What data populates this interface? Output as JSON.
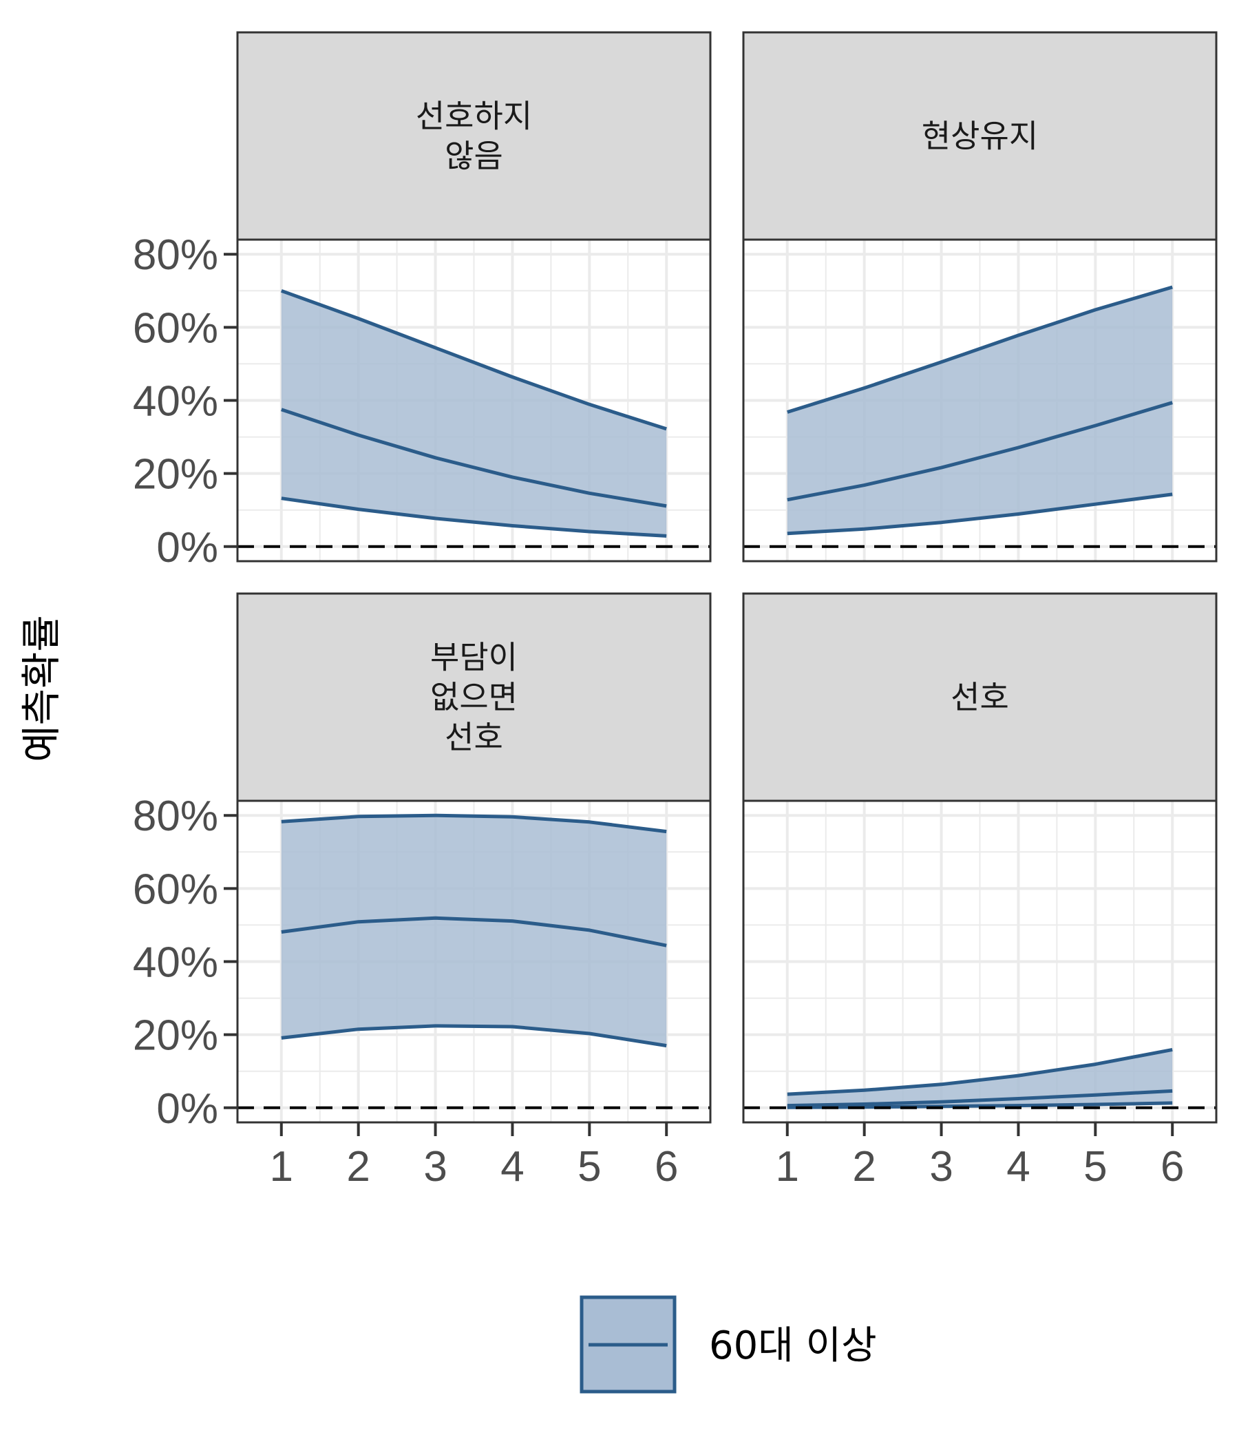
{
  "chart_data": {
    "type": "area",
    "ylabel": "예측확률",
    "xlabel": "",
    "x": [
      1,
      2,
      3,
      4,
      5,
      6
    ],
    "x_tick_labels": [
      "1",
      "2",
      "3",
      "4",
      "5",
      "6"
    ],
    "ylim": [
      -0.04,
      0.84
    ],
    "xlim": [
      0.43,
      6.57
    ],
    "y_ticks": [
      0,
      0.2,
      0.4,
      0.6,
      0.8
    ],
    "y_tick_labels": [
      "0%",
      "20%",
      "40%",
      "60%",
      "80%"
    ],
    "reference_line": {
      "y": 0,
      "style": "dashed",
      "color": "#000000"
    },
    "grid": true,
    "legend": {
      "position": "bottom",
      "entries": [
        {
          "label": "60대 이상",
          "color": "#2b5c8a"
        }
      ]
    },
    "colors": {
      "band_fill": "#a9bdd4",
      "line": "#2b5c8a",
      "strip_bg": "#d9d9d9",
      "grid": "#ebebeb"
    },
    "panels": [
      {
        "title": "선호하지\n않음",
        "title_lines": [
          "선호하지",
          "않음"
        ],
        "series": [
          {
            "name": "60대 이상",
            "mean": [
              0.375,
              0.305,
              0.243,
              0.19,
              0.146,
              0.111
            ],
            "lower": [
              0.132,
              0.102,
              0.077,
              0.057,
              0.041,
              0.029
            ],
            "upper": [
              0.7,
              0.624,
              0.544,
              0.464,
              0.389,
              0.322
            ]
          }
        ]
      },
      {
        "title": "현상유지",
        "title_lines": [
          "현상유지"
        ],
        "series": [
          {
            "name": "60대 이상",
            "mean": [
              0.128,
              0.168,
              0.216,
              0.271,
              0.331,
              0.394
            ],
            "lower": [
              0.036,
              0.048,
              0.066,
              0.089,
              0.116,
              0.143
            ],
            "upper": [
              0.368,
              0.434,
              0.505,
              0.578,
              0.648,
              0.71
            ]
          }
        ]
      },
      {
        "title": "부담이\n없으면\n선호",
        "title_lines": [
          "부담이",
          "없으면",
          "선호"
        ],
        "series": [
          {
            "name": "60대 이상",
            "mean": [
              0.481,
              0.509,
              0.519,
              0.511,
              0.486,
              0.444
            ],
            "lower": [
              0.191,
              0.215,
              0.224,
              0.222,
              0.203,
              0.17
            ],
            "upper": [
              0.783,
              0.797,
              0.8,
              0.796,
              0.782,
              0.756
            ]
          }
        ]
      },
      {
        "title": "선호",
        "title_lines": [
          "선호"
        ],
        "series": [
          {
            "name": "60대 이상",
            "mean": [
              0.006,
              0.01,
              0.016,
              0.025,
              0.035,
              0.046
            ],
            "lower": [
              0.001,
              0.002,
              0.004,
              0.006,
              0.009,
              0.013
            ],
            "upper": [
              0.037,
              0.048,
              0.064,
              0.088,
              0.119,
              0.159
            ]
          }
        ]
      }
    ]
  }
}
